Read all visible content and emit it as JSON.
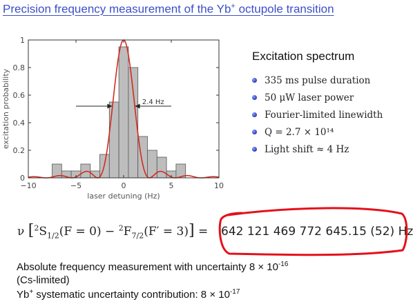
{
  "slide": {
    "title": "Precision frequency measurement of the Yb",
    "title_sup": "+",
    "title_rest": " octupole transition"
  },
  "panel": {
    "title": "Excitation spectrum",
    "bullets": [
      "335 ms pulse duration",
      "50 μW laser power",
      "Fourier-limited linewidth",
      "Q = 2.7 × 10¹⁴",
      "Light shift ≈ 4 Hz"
    ]
  },
  "formula": {
    "nu": "ν",
    "state1": "S",
    "state1_sup": "2",
    "state1_sub": "1/2",
    "state1_q": "(F = 0)",
    "minus": " − ",
    "state2": "F",
    "state2_sup": "2",
    "state2_sub": "7/2",
    "state2_q": "(F′ = 3)",
    "equals": " = ",
    "value": "642 121 469 772 645.15 (52) Hz"
  },
  "footer": {
    "line1": "Absolute frequency measurement with uncertainty 8 × 10",
    "line1_exp": "-16",
    "line2": "(Cs-limited)",
    "line3_a": "Yb",
    "line3_sup": "+",
    "line3_b": " systematic uncertainty contribution: 8 × 10",
    "line3_exp": "-17"
  },
  "colors": {
    "title": "#3a4fc8",
    "bar_fill": "#bdbdbd",
    "fit_line": "#d42a1e",
    "highlight": "#e4101a",
    "bullet": "#3345c2"
  },
  "chart_data": {
    "type": "bar",
    "xlabel": "laser detuning (Hz)",
    "ylabel": "excitation probability",
    "xlim": [
      -10,
      10
    ],
    "ylim": [
      0,
      1
    ],
    "xticks": [
      -10,
      -5,
      0,
      5,
      10
    ],
    "yticks": [
      0,
      0.2,
      0.4,
      0.6,
      0.8,
      1
    ],
    "bin_width": 1,
    "bins": [
      {
        "x": -7,
        "y": 0.1
      },
      {
        "x": -6,
        "y": 0.05
      },
      {
        "x": -5,
        "y": 0.05
      },
      {
        "x": -4,
        "y": 0.1
      },
      {
        "x": -3,
        "y": 0.05
      },
      {
        "x": -2,
        "y": 0.17
      },
      {
        "x": -1,
        "y": 0.55
      },
      {
        "x": 0,
        "y": 0.95
      },
      {
        "x": 1,
        "y": 0.8
      },
      {
        "x": 2,
        "y": 0.3
      },
      {
        "x": 3,
        "y": 0.2
      },
      {
        "x": 4,
        "y": 0.15
      },
      {
        "x": 5,
        "y": 0.05
      },
      {
        "x": 6,
        "y": 0.1
      }
    ],
    "fit": {
      "type": "sinc-squared",
      "amplitude": 1.0,
      "center": 0,
      "fwhm": 2.4
    },
    "annotation": {
      "label": "2.4 Hz",
      "y": 0.52,
      "x_left": -1.2,
      "x_right": 1.2
    }
  }
}
